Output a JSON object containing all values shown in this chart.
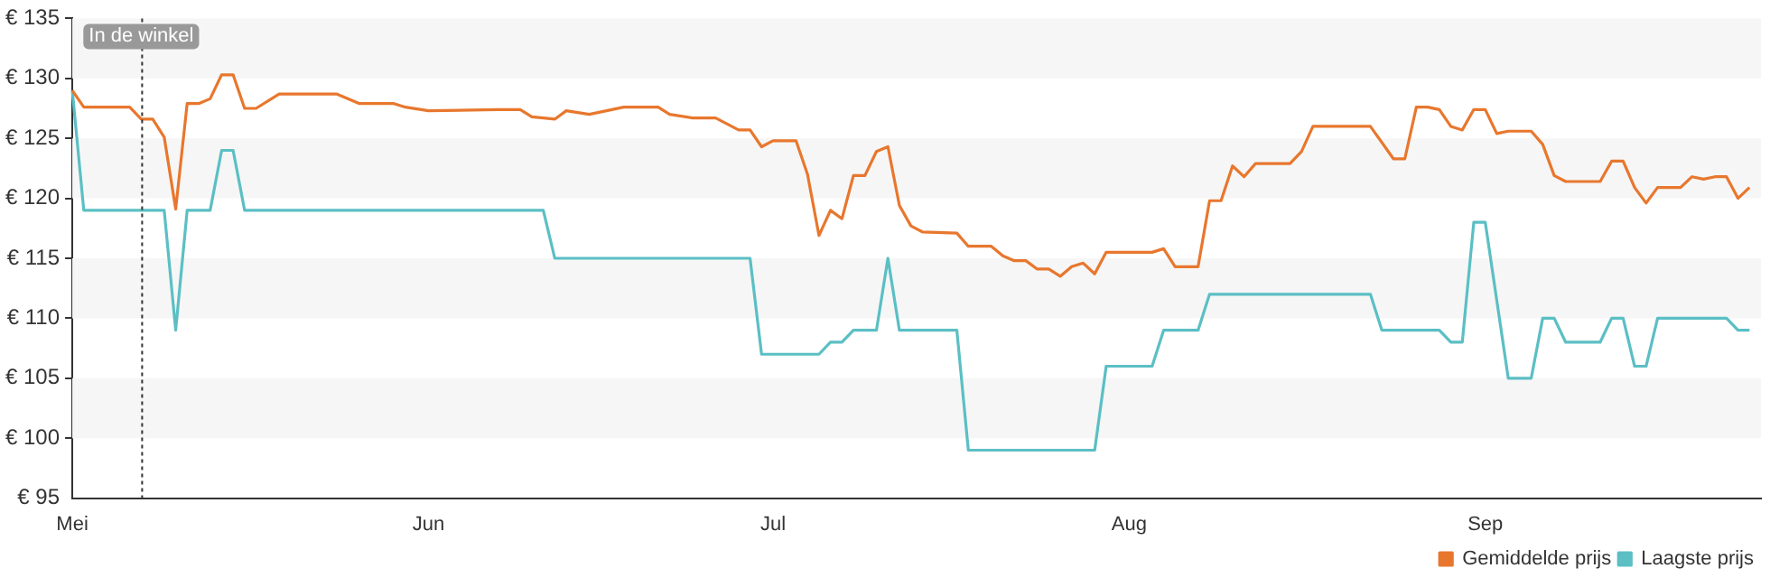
{
  "chart_data": {
    "type": "line",
    "xlim": [
      "--05-01",
      "--09-25"
    ],
    "ylim": [
      95,
      135
    ],
    "xticks": [
      {
        "value": "--05-01",
        "label": "Mei"
      },
      {
        "value": "--06-01",
        "label": "Jun"
      },
      {
        "value": "--07-01",
        "label": "Jul"
      },
      {
        "value": "--08-01",
        "label": "Aug"
      },
      {
        "value": "--09-01",
        "label": "Sep"
      }
    ],
    "yticks": [
      {
        "value": 95,
        "label": "€ 95"
      },
      {
        "value": 100,
        "label": "€ 100"
      },
      {
        "value": 105,
        "label": "€ 105"
      },
      {
        "value": 110,
        "label": "€ 110"
      },
      {
        "value": 115,
        "label": "€ 115"
      },
      {
        "value": 120,
        "label": "€ 120"
      },
      {
        "value": 125,
        "label": "€ 125"
      },
      {
        "value": 130,
        "label": "€ 130"
      },
      {
        "value": 135,
        "label": "€ 135"
      }
    ],
    "legend": "bottom right",
    "marker": "none",
    "bands": [
      {
        "axis": "y",
        "from": 130,
        "to": 135,
        "color": "#f6f6f6"
      },
      {
        "axis": "y",
        "from": 120,
        "to": 125,
        "color": "#f6f6f6"
      },
      {
        "axis": "y",
        "from": 110,
        "to": 115,
        "color": "#f6f6f6"
      },
      {
        "axis": "y",
        "from": 100,
        "to": 105,
        "color": "#f6f6f6"
      }
    ],
    "ref_lines": [
      {
        "axis": "x",
        "value": "--05-07",
        "label": "In de winkel",
        "line_style": "dotted",
        "color": "#333333"
      }
    ],
    "series": [
      {
        "name": "Gemiddelde prijs",
        "color": "#e8772e",
        "x": [
          "--05-01",
          "--05-02",
          "--05-06",
          "--05-07",
          "--05-08",
          "--05-09",
          "--05-10",
          "--05-11",
          "--05-12",
          "--05-13",
          "--05-14",
          "--05-15",
          "--05-16",
          "--05-17",
          "--05-19",
          "--05-24",
          "--05-26",
          "--05-29",
          "--05-30",
          "--06-01",
          "--06-07",
          "--06-09",
          "--06-10",
          "--06-12",
          "--06-13",
          "--06-15",
          "--06-18",
          "--06-21",
          "--06-22",
          "--06-24",
          "--06-26",
          "--06-28",
          "--06-29",
          "--06-30",
          "--07-01",
          "--07-03",
          "--07-04",
          "--07-05",
          "--07-06",
          "--07-07",
          "--07-08",
          "--07-09",
          "--07-10",
          "--07-11",
          "--07-12",
          "--07-13",
          "--07-14",
          "--07-17",
          "--07-18",
          "--07-20",
          "--07-21",
          "--07-22",
          "--07-23",
          "--07-24",
          "--07-25",
          "--07-26",
          "--07-27",
          "--07-28",
          "--07-29",
          "--07-30",
          "--08-03",
          "--08-04",
          "--08-05",
          "--08-07",
          "--08-08",
          "--08-09",
          "--08-10",
          "--08-11",
          "--08-12",
          "--08-15",
          "--08-16",
          "--08-17",
          "--08-22",
          "--08-24",
          "--08-25",
          "--08-26",
          "--08-27",
          "--08-28",
          "--08-29",
          "--08-30",
          "--08-31",
          "--09-01",
          "--09-02",
          "--09-03",
          "--09-05",
          "--09-06",
          "--09-07",
          "--09-08",
          "--09-11",
          "--09-12",
          "--09-13",
          "--09-14",
          "--09-15",
          "--09-16",
          "--09-18",
          "--09-19",
          "--09-20",
          "--09-21",
          "--09-22",
          "--09-23",
          "--09-24"
        ],
        "values": [
          129.0,
          127.6,
          127.6,
          126.6,
          126.6,
          125.1,
          119.1,
          127.9,
          127.9,
          128.3,
          130.3,
          130.3,
          127.5,
          127.5,
          128.7,
          128.7,
          127.9,
          127.9,
          127.6,
          127.3,
          127.4,
          127.4,
          126.8,
          126.6,
          127.3,
          127.0,
          127.6,
          127.6,
          127.0,
          126.7,
          126.7,
          125.7,
          125.7,
          124.3,
          124.8,
          124.8,
          122.0,
          116.9,
          119.0,
          118.3,
          121.9,
          121.9,
          123.9,
          124.3,
          119.4,
          117.7,
          117.2,
          117.1,
          116.0,
          116.0,
          115.2,
          114.8,
          114.8,
          114.1,
          114.1,
          113.5,
          114.3,
          114.6,
          113.7,
          115.5,
          115.5,
          115.8,
          114.3,
          114.3,
          119.8,
          119.8,
          122.7,
          121.8,
          122.9,
          122.9,
          123.9,
          126.0,
          126.0,
          123.3,
          123.3,
          127.6,
          127.6,
          127.4,
          126.0,
          125.7,
          127.4,
          127.4,
          125.4,
          125.6,
          125.6,
          124.5,
          121.9,
          121.4,
          121.4,
          123.1,
          123.1,
          120.9,
          119.6,
          120.9,
          120.9,
          121.8,
          121.6,
          121.8,
          121.8,
          120.0,
          120.9
        ]
      },
      {
        "name": "Laagste prijs",
        "color": "#5bbfc4",
        "x": [
          "--05-01",
          "--05-02",
          "--05-09",
          "--05-10",
          "--05-11",
          "--05-13",
          "--05-14",
          "--05-15",
          "--05-16",
          "--06-11",
          "--06-12",
          "--06-29",
          "--06-30",
          "--07-05",
          "--07-06",
          "--07-07",
          "--07-08",
          "--07-10",
          "--07-11",
          "--07-12",
          "--07-17",
          "--07-18",
          "--07-29",
          "--07-30",
          "--08-03",
          "--08-04",
          "--08-07",
          "--08-08",
          "--08-22",
          "--08-23",
          "--08-28",
          "--08-29",
          "--08-30",
          "--08-31",
          "--09-01",
          "--09-03",
          "--09-05",
          "--09-06",
          "--09-07",
          "--09-08",
          "--09-11",
          "--09-12",
          "--09-13",
          "--09-14",
          "--09-15",
          "--09-16",
          "--09-22",
          "--09-23",
          "--09-24"
        ],
        "values": [
          129,
          119,
          119,
          109,
          119,
          119,
          124,
          124,
          119,
          119,
          115,
          115,
          107,
          107,
          108,
          108,
          109,
          109,
          115,
          109,
          109,
          99,
          99,
          106,
          106,
          109,
          109,
          112,
          112,
          109,
          109,
          108,
          108,
          118,
          118,
          105,
          105,
          110,
          110,
          108,
          108,
          110,
          110,
          106,
          106,
          110,
          110,
          109,
          109
        ]
      }
    ]
  }
}
